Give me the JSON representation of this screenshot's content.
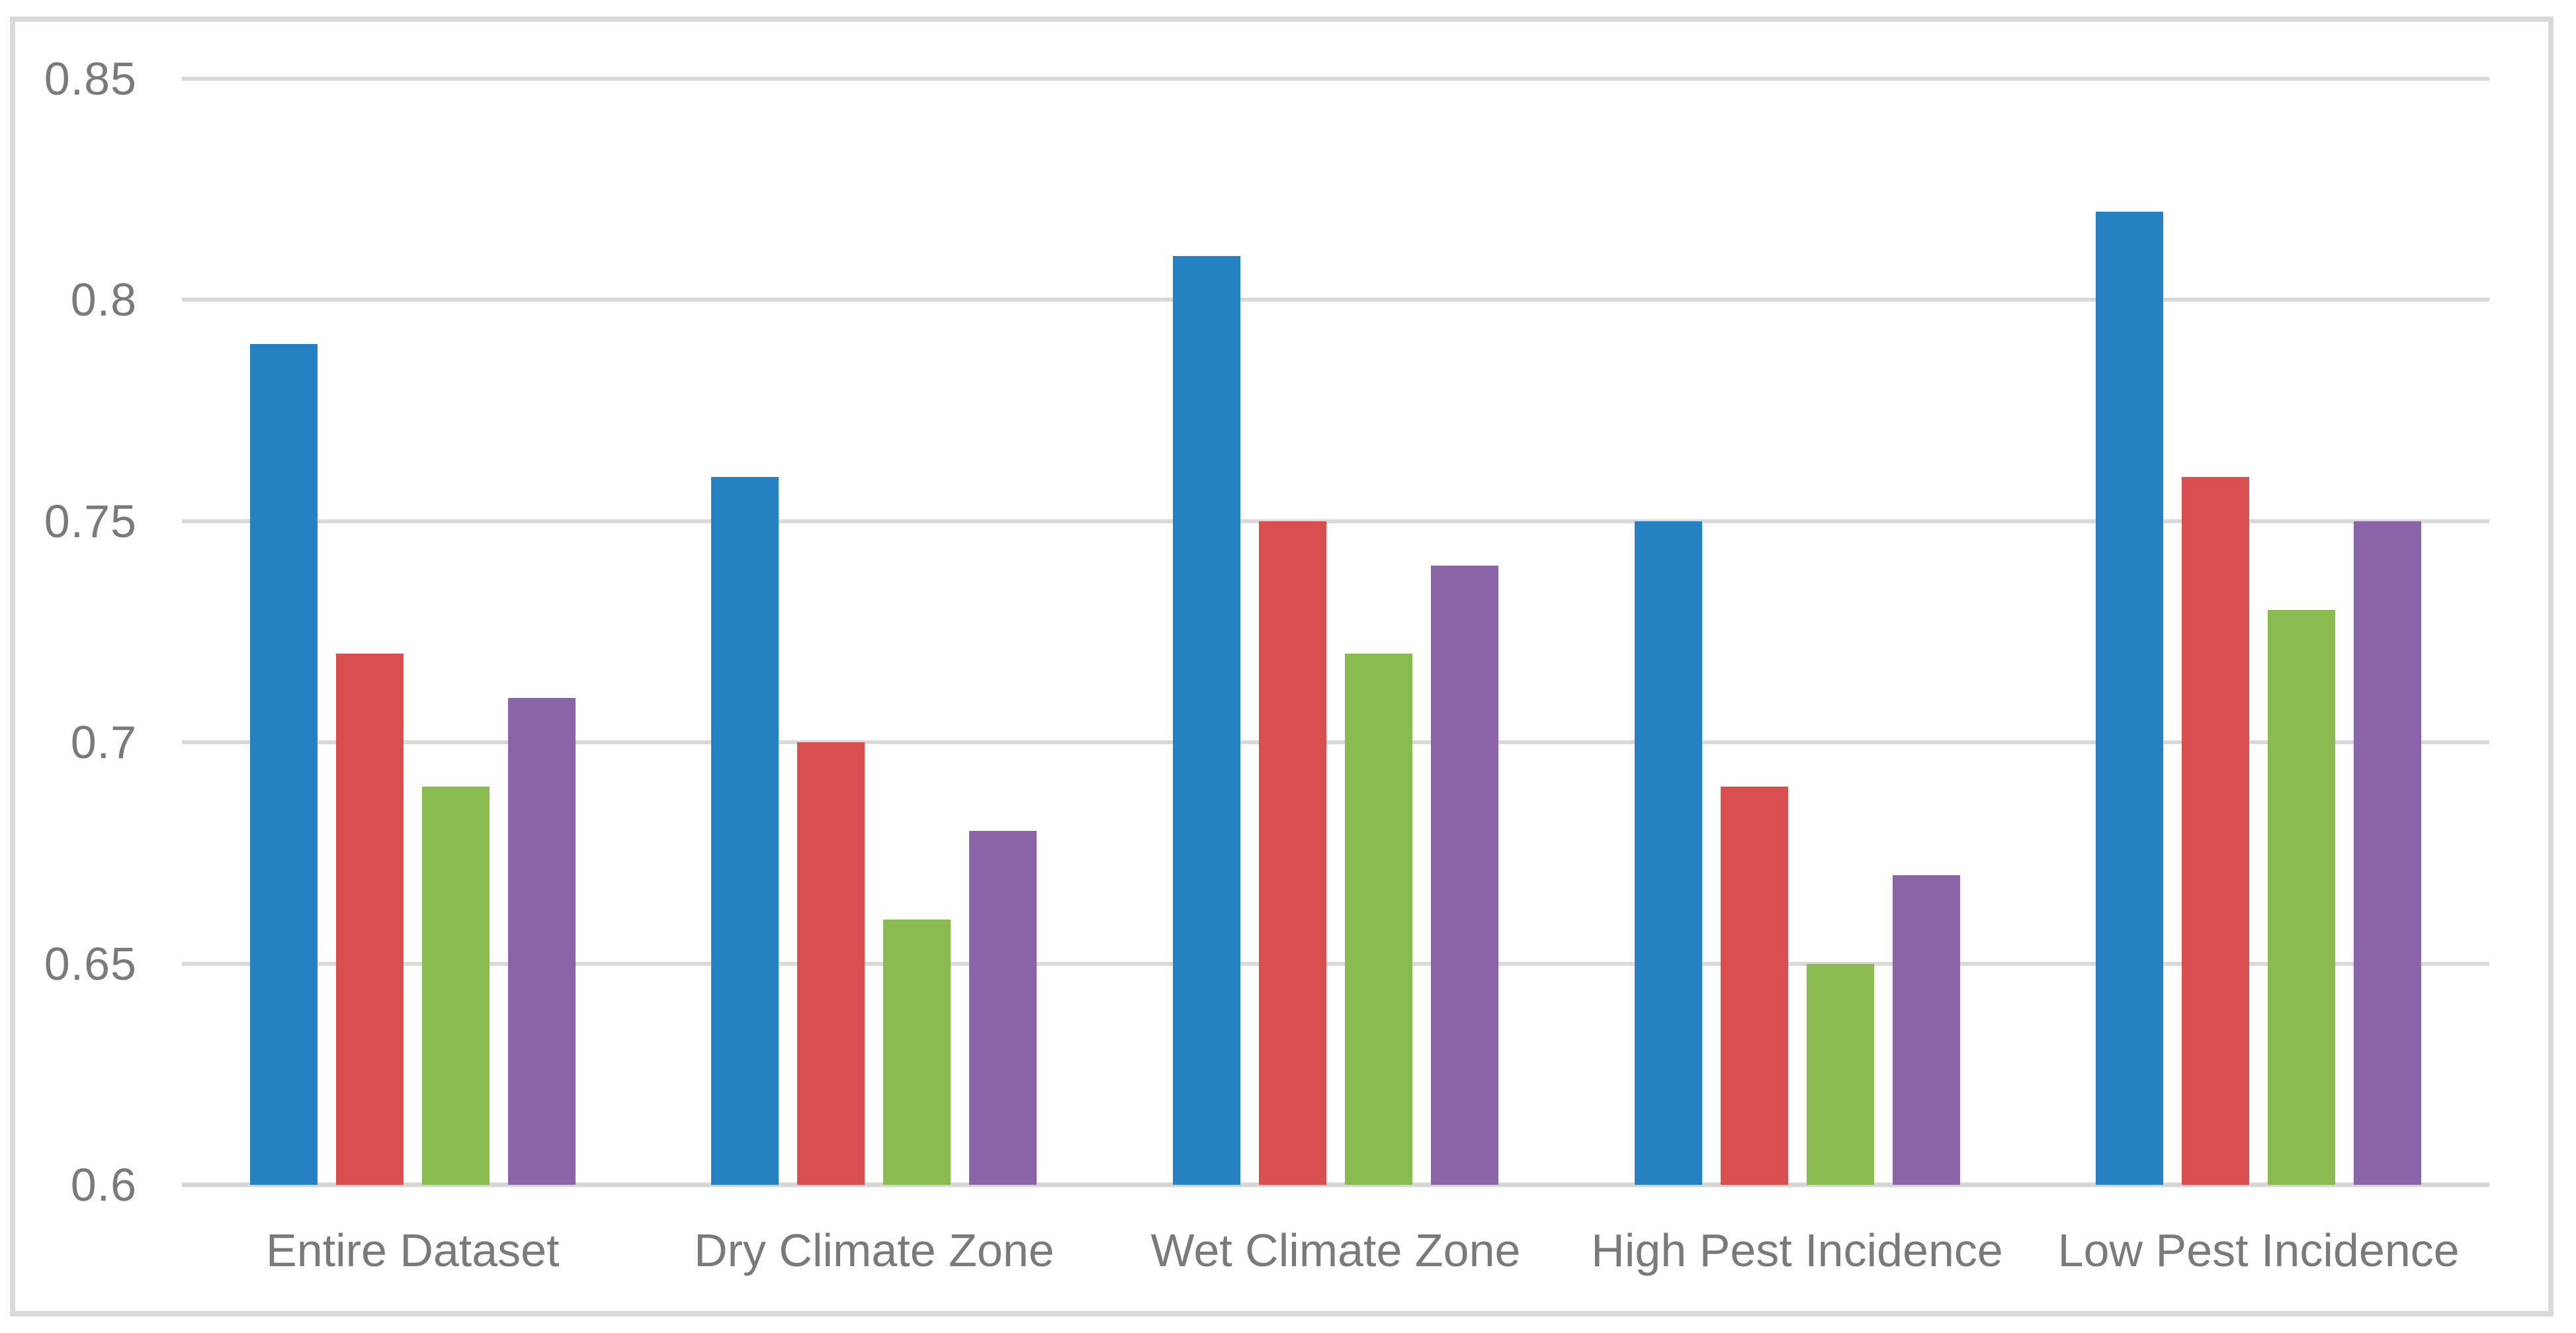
{
  "chart_data": {
    "type": "bar",
    "title": "",
    "xlabel": "",
    "ylabel": "",
    "categories": [
      "Entire Dataset",
      "Dry Climate Zone",
      "Wet Climate Zone",
      "High Pest Incidence",
      "Low Pest Incidence"
    ],
    "series": [
      {
        "name": "blue",
        "color": "#2581C1",
        "values": [
          0.79,
          0.76,
          0.81,
          0.75,
          0.82
        ]
      },
      {
        "name": "red",
        "color": "#D94F4F",
        "values": [
          0.72,
          0.7,
          0.75,
          0.69,
          0.76
        ]
      },
      {
        "name": "green",
        "color": "#8ABB51",
        "values": [
          0.69,
          0.66,
          0.72,
          0.65,
          0.73
        ]
      },
      {
        "name": "purple",
        "color": "#8A64A7",
        "values": [
          0.71,
          0.68,
          0.74,
          0.67,
          0.75
        ]
      }
    ],
    "ylim": [
      0.6,
      0.85
    ],
    "ytick_step": 0.05,
    "yticks": [
      "0.85",
      "0.8",
      "0.75",
      "0.7",
      "0.65",
      "0.6"
    ],
    "grid": true,
    "legend_position": "none"
  },
  "style_colors": {
    "gridline": "#D9D9D9",
    "axis_line": "#D6D6D6",
    "frame_border": "#D9D9D9",
    "tick_text": "#7A7A7A"
  }
}
